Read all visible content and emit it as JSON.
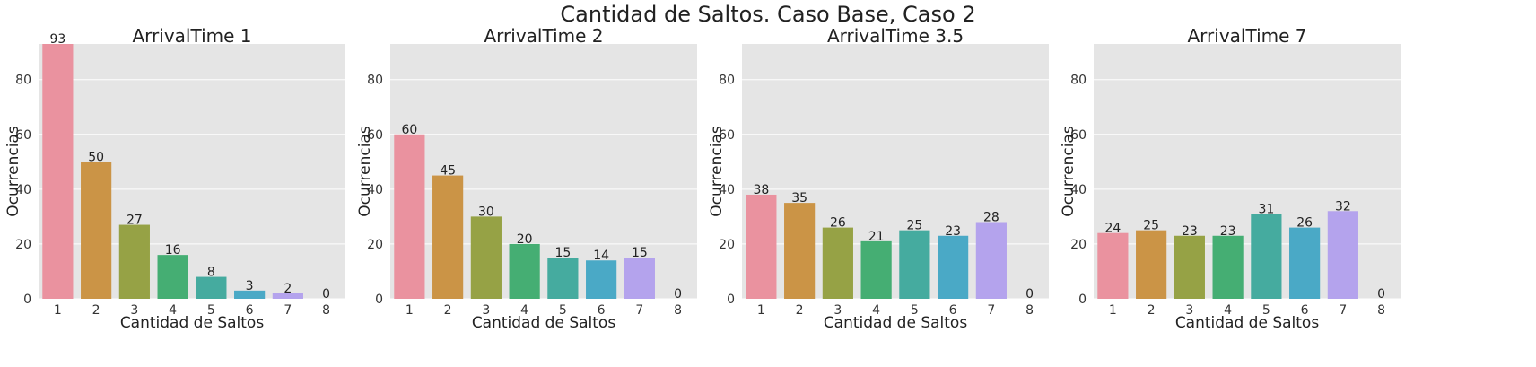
{
  "suptitle": "Cantidad de Saltos. Caso Base, Caso 2",
  "colors": {
    "plot_background": "#e5e5e5",
    "grid": "#ffffff",
    "bars": [
      "#ea929f",
      "#cb9446",
      "#96a245",
      "#45ae73",
      "#45ab9f",
      "#4aa9c6",
      "#b4a3ed",
      "#ec8ebd"
    ]
  },
  "chart_data": [
    {
      "type": "bar",
      "title": "ArrivalTime 1",
      "xlabel": "Cantidad de Saltos",
      "ylabel": "Ocurrencias",
      "categories": [
        "1",
        "2",
        "3",
        "4",
        "5",
        "6",
        "7",
        "8"
      ],
      "values": [
        93,
        50,
        27,
        16,
        8,
        3,
        2,
        0
      ],
      "ylim": [
        0,
        93
      ],
      "yticks": [
        0,
        20,
        40,
        60,
        80
      ],
      "grid": true
    },
    {
      "type": "bar",
      "title": "ArrivalTime 2",
      "xlabel": "Cantidad de Saltos",
      "ylabel": "Ocurrencias",
      "categories": [
        "1",
        "2",
        "3",
        "4",
        "5",
        "6",
        "7",
        "8"
      ],
      "values": [
        60,
        45,
        30,
        20,
        15,
        14,
        15,
        0
      ],
      "ylim": [
        0,
        93
      ],
      "yticks": [
        0,
        20,
        40,
        60,
        80
      ],
      "grid": true
    },
    {
      "type": "bar",
      "title": "ArrivalTime 3.5",
      "xlabel": "Cantidad de Saltos",
      "ylabel": "Ocurrencias",
      "categories": [
        "1",
        "2",
        "3",
        "4",
        "5",
        "6",
        "7",
        "8"
      ],
      "values": [
        38,
        35,
        26,
        21,
        25,
        23,
        28,
        0
      ],
      "ylim": [
        0,
        93
      ],
      "yticks": [
        0,
        20,
        40,
        60,
        80
      ],
      "grid": true
    },
    {
      "type": "bar",
      "title": "ArrivalTime 7",
      "xlabel": "Cantidad de Saltos",
      "ylabel": "Ocurrencias",
      "categories": [
        "1",
        "2",
        "3",
        "4",
        "5",
        "6",
        "7",
        "8"
      ],
      "values": [
        24,
        25,
        23,
        23,
        31,
        26,
        32,
        0
      ],
      "ylim": [
        0,
        93
      ],
      "yticks": [
        0,
        20,
        40,
        60,
        80
      ],
      "grid": true
    }
  ]
}
